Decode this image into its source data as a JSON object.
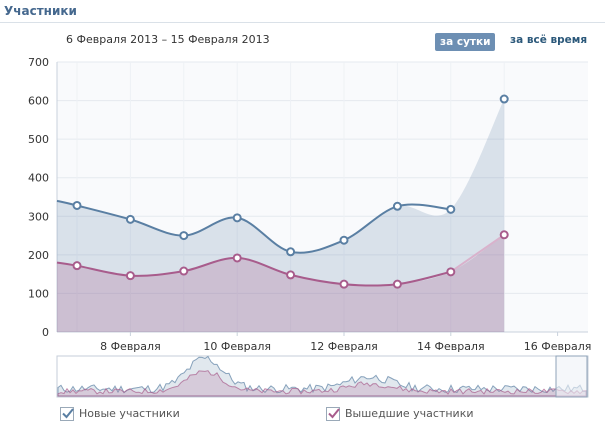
{
  "header": {
    "title": "Участники"
  },
  "date_range": "6 Февраля 2013 – 15 Февраля 2013",
  "period": {
    "day": "за сутки",
    "all": "за всё время"
  },
  "legend": {
    "new": "Новые участники",
    "left": "Вышедшие участники"
  },
  "colors": {
    "new": "#5a7fa3",
    "left": "#a85c8c",
    "accent": "#6d8fb3"
  },
  "chart_data": {
    "type": "area",
    "x_labels": [
      "8 Февраля",
      "10 Февраля",
      "12 Февраля",
      "14 Февраля",
      "16 Февраля"
    ],
    "x": [
      "7 Февраля",
      "8 Февраля",
      "9 Февраля",
      "10 Февраля",
      "11 Февраля",
      "12 Февраля",
      "13 Февраля",
      "14 Февраля",
      "15 Февраля"
    ],
    "ylim": [
      0,
      700
    ],
    "yticks": [
      0,
      100,
      200,
      300,
      400,
      500,
      600,
      700
    ],
    "grid": true,
    "series": [
      {
        "name": "Новые участники",
        "values": [
          328,
          292,
          250,
          296,
          208,
          238,
          326,
          318,
          604
        ]
      },
      {
        "name": "Вышедшие участники",
        "values": [
          172,
          146,
          158,
          192,
          148,
          124,
          124,
          156,
          252
        ]
      }
    ]
  }
}
